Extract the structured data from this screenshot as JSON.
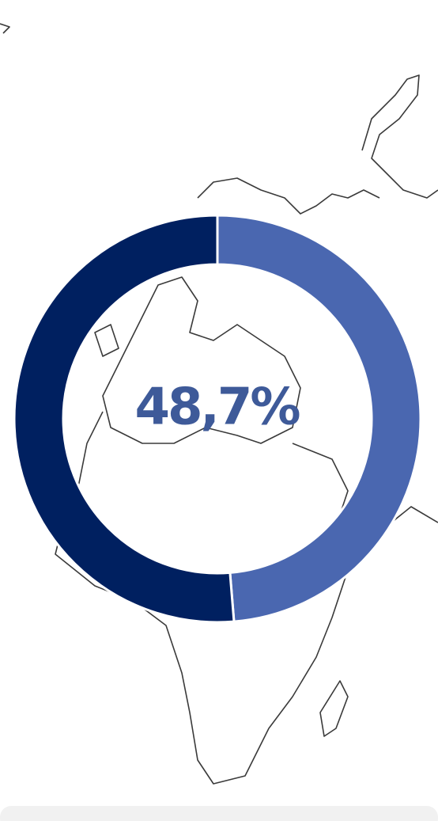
{
  "chart_data": {
    "type": "donut",
    "center_label": "48,7%",
    "categories": [
      null,
      null
    ],
    "values": [
      48.7,
      51.3
    ],
    "colors": [
      "#4a67b0",
      "#002060"
    ]
  }
}
